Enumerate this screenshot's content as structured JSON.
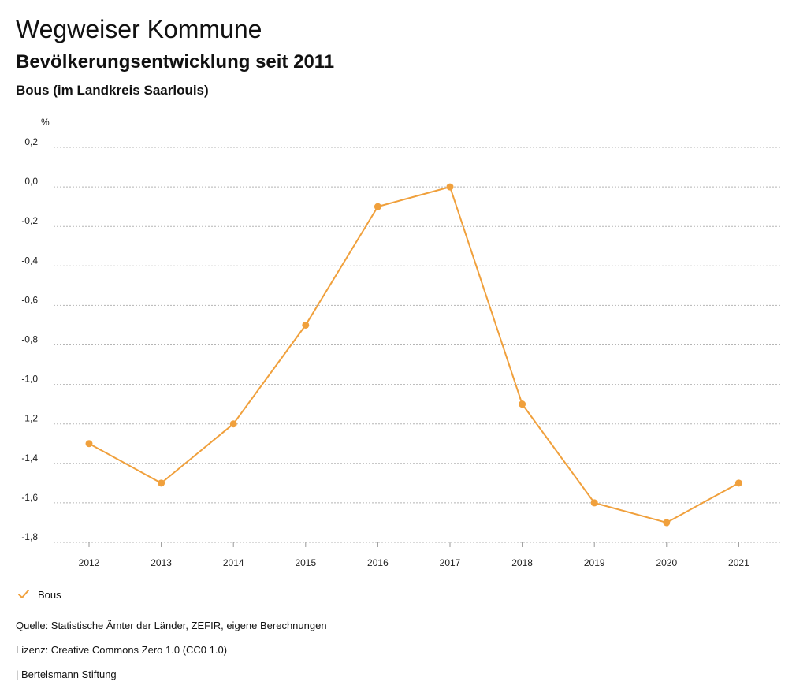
{
  "header": {
    "title": "Wegweiser Kommune",
    "subtitle": "Bevölkerungsentwicklung seit 2011",
    "region": "Bous (im Landkreis Saarlouis)"
  },
  "chart_data": {
    "type": "line",
    "title": "Bevölkerungsentwicklung seit 2011",
    "xlabel": "",
    "ylabel": "%",
    "categories": [
      "2012",
      "2013",
      "2014",
      "2015",
      "2016",
      "2017",
      "2018",
      "2019",
      "2020",
      "2021"
    ],
    "series": [
      {
        "name": "Bous",
        "color": "#f0a03c",
        "values": [
          -1.3,
          -1.5,
          -1.2,
          -0.7,
          -0.1,
          0.0,
          -1.1,
          -1.6,
          -1.7,
          -1.5
        ]
      }
    ],
    "ylim": [
      -1.8,
      0.2
    ],
    "yticks": [
      0.2,
      0.0,
      -0.2,
      -0.4,
      -0.6,
      -0.8,
      -1.0,
      -1.2,
      -1.4,
      -1.6,
      -1.8
    ],
    "ytick_labels": [
      "0,2",
      "0,0",
      "-0,2",
      "-0,4",
      "-0,6",
      "-0,8",
      "-1,0",
      "-1,2",
      "-1,4",
      "-1,6",
      "-1,8"
    ],
    "grid": true,
    "legend_position": "bottom-left"
  },
  "legend": {
    "label": "Bous"
  },
  "footer": {
    "source": "Quelle: Statistische Ämter der Länder, ZEFIR, eigene Berechnungen",
    "license": "Lizenz: Creative Commons Zero 1.0 (CC0 1.0)",
    "publisher": "| Bertelsmann Stiftung"
  }
}
